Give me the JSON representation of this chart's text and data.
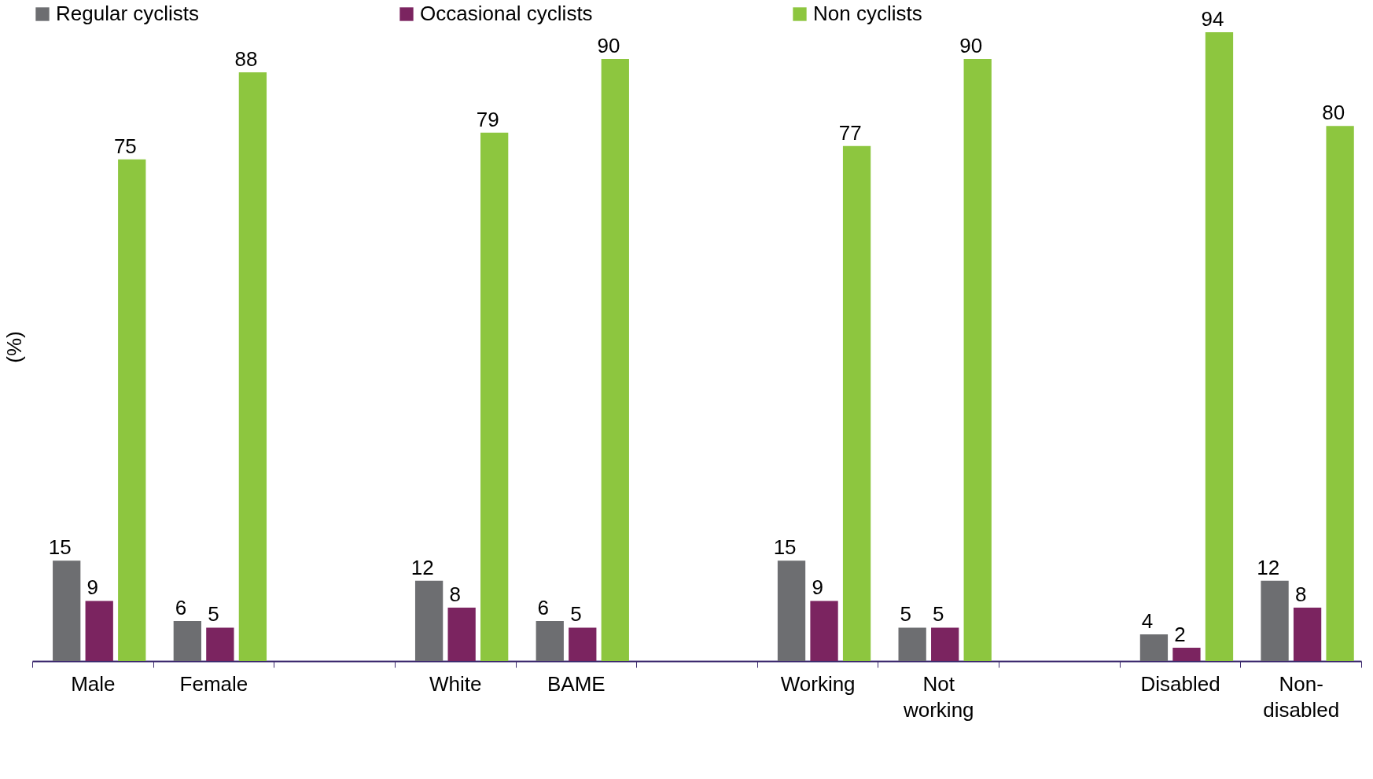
{
  "chart_data": {
    "type": "bar",
    "ylabel": "(%)",
    "categories": [
      "Male",
      "Female",
      null,
      "White",
      "BAME",
      null,
      "Working",
      "Not working",
      null,
      "Disabled",
      "Non-disabled"
    ],
    "series": [
      {
        "name": "Regular cyclists",
        "color": "#6d6e71",
        "values": [
          15,
          6,
          null,
          12,
          6,
          null,
          15,
          5,
          null,
          4,
          12
        ]
      },
      {
        "name": "Occasional cyclists",
        "color": "#7b2460",
        "values": [
          9,
          5,
          null,
          8,
          5,
          null,
          9,
          5,
          null,
          2,
          8
        ]
      },
      {
        "name": "Non cyclists",
        "color": "#8dc63f",
        "values": [
          75,
          88,
          null,
          79,
          90,
          null,
          77,
          90,
          null,
          94,
          80
        ]
      }
    ],
    "data_labels": true,
    "legend": "top",
    "tick_labels": "x",
    "grid": false
  }
}
